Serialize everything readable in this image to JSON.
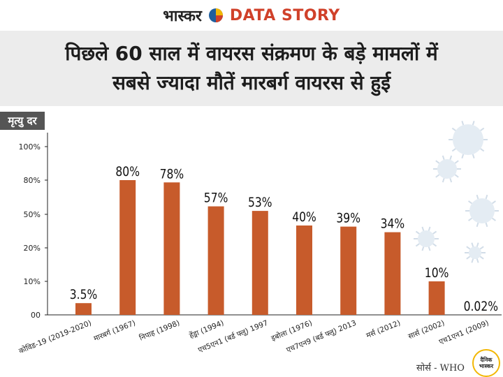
{
  "header": {
    "brand_name": "भास्कर",
    "section_name": "DATA STORY"
  },
  "title": {
    "line1": "पिछले 60 साल में वायरस संक्रमण के बड़े मामलों में",
    "line2": "सबसे ज्यादा मौतें मारबर्ग वायरस से हुई"
  },
  "source": "सोर्स - WHO",
  "logo_text": "दैनिक भास्कर",
  "colors": {
    "bar": "#c75b2b",
    "title_band": "#ececec",
    "ylabel_box": "#555555"
  },
  "chart_data": {
    "type": "bar",
    "ylabel": "मृत्यु दर",
    "ylim": [
      0,
      100
    ],
    "ytick_labels": [
      "00",
      "10%",
      "20%",
      "50%",
      "80%",
      "100%"
    ],
    "categories": [
      "कोविड-19 (2019-2020)",
      "मारबर्ग (1967)",
      "निपाह (1998)",
      "हेंड्रा (1994)",
      "एच5एन1 (बर्ड फ्लू) 1997",
      "इबोला (1976)",
      "एच7एन9 (बर्ड फ्लू) 2013",
      "मर्स (2012)",
      "सार्स (2002)",
      "एच1एन1 (2009)"
    ],
    "values": [
      3.5,
      80,
      78,
      57,
      53,
      40,
      39,
      34,
      10,
      0.02
    ],
    "value_labels": [
      "3.5%",
      "80%",
      "78%",
      "57%",
      "53%",
      "40%",
      "39%",
      "34%",
      "10%",
      "0.02%"
    ]
  }
}
